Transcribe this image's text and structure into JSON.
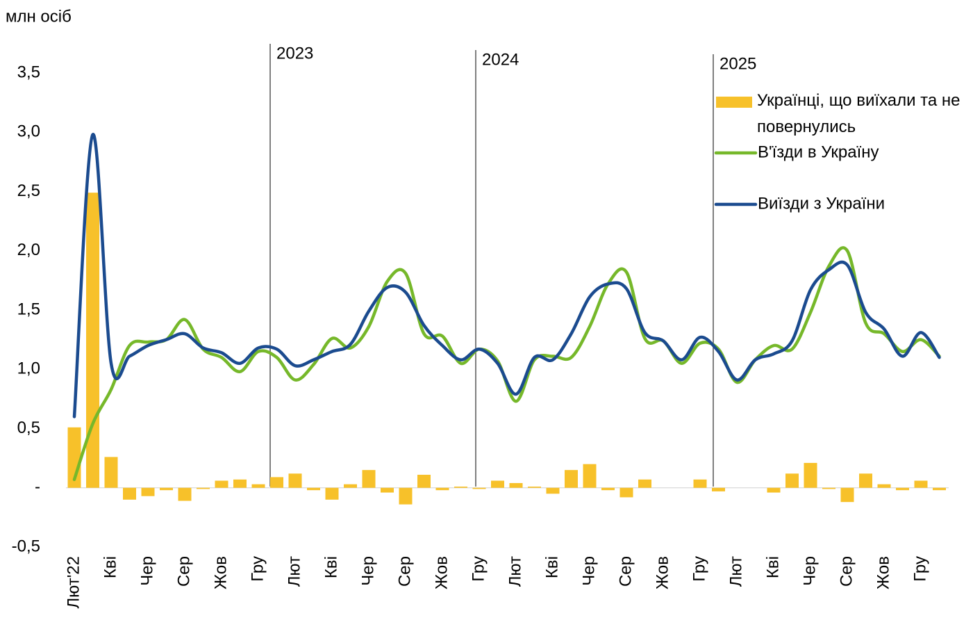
{
  "chart_data": {
    "type": "bar-line",
    "y_label": "млн осіб",
    "legend": "top-right",
    "categories": [
      "Лют'22",
      null,
      "Кві",
      null,
      "Чер",
      null,
      "Сер",
      null,
      "Жов",
      null,
      "Гру",
      null,
      "Лют",
      null,
      "Кві",
      null,
      "Чер",
      null,
      "Сер",
      null,
      "Жов",
      null,
      "Гру",
      null,
      "Лют",
      null,
      "Кві",
      null,
      "Чер",
      null,
      "Сер",
      null,
      "Жов",
      null,
      "Гру",
      null,
      "Лют",
      null,
      "Кві",
      null,
      "Чер",
      null,
      "Сер",
      null,
      "Жов",
      null,
      "Гру",
      null
    ],
    "series": [
      {
        "name": "Українці, що виїхали та не повернулись",
        "kind": "bar",
        "color": "#f7c12a",
        "values": [
          0.51,
          2.49,
          0.26,
          -0.1,
          -0.07,
          -0.02,
          -0.11,
          -0.01,
          0.06,
          0.07,
          0.03,
          0.09,
          0.12,
          -0.02,
          -0.1,
          0.03,
          0.15,
          -0.04,
          -0.14,
          0.11,
          -0.02,
          0.01,
          -0.01,
          0.06,
          0.04,
          0.01,
          -0.05,
          0.15,
          0.2,
          -0.02,
          -0.08,
          0.07,
          0,
          0,
          0.07,
          -0.03,
          0,
          0,
          -0.04,
          0.12,
          0.21,
          -0.01,
          -0.12,
          0.12,
          0.03,
          -0.02,
          0.06,
          -0.02
        ]
      },
      {
        "name": "В'їзди в Україну",
        "kind": "line",
        "color": "#76b82a",
        "values": [
          0.07,
          0.54,
          0.83,
          1.2,
          1.23,
          1.25,
          1.42,
          1.17,
          1.1,
          0.98,
          1.15,
          1.1,
          0.91,
          1.04,
          1.26,
          1.18,
          1.36,
          1.74,
          1.81,
          1.3,
          1.28,
          1.05,
          1.17,
          1.07,
          0.73,
          1.08,
          1.11,
          1.1,
          1.36,
          1.72,
          1.82,
          1.26,
          1.24,
          1.05,
          1.22,
          1.17,
          0.89,
          1.08,
          1.2,
          1.17,
          1.48,
          1.87,
          2.0,
          1.39,
          1.3,
          1.15,
          1.25,
          1.11
        ]
      },
      {
        "name": "Виїзди з України",
        "kind": "line",
        "color": "#1b4b8f",
        "values": [
          0.6,
          2.98,
          1.05,
          1.11,
          1.2,
          1.25,
          1.3,
          1.18,
          1.14,
          1.05,
          1.18,
          1.17,
          1.03,
          1.08,
          1.15,
          1.21,
          1.49,
          1.69,
          1.65,
          1.37,
          1.2,
          1.08,
          1.17,
          1.05,
          0.79,
          1.1,
          1.08,
          1.3,
          1.61,
          1.72,
          1.68,
          1.31,
          1.24,
          1.08,
          1.27,
          1.15,
          0.91,
          1.08,
          1.13,
          1.24,
          1.67,
          1.84,
          1.88,
          1.48,
          1.34,
          1.11,
          1.31,
          1.1
        ]
      }
    ],
    "ylim": [
      -0.5,
      3.5
    ],
    "yticks": [
      {
        "value": -0.5,
        "label": "-0,5"
      },
      {
        "value": 0,
        "label": "-"
      },
      {
        "value": 0.5,
        "label": "0,5"
      },
      {
        "value": 1,
        "label": "1,0"
      },
      {
        "value": 1.5,
        "label": "1,5"
      },
      {
        "value": 2,
        "label": "2,0"
      },
      {
        "value": 2.5,
        "label": "2,5"
      },
      {
        "value": 3,
        "label": "3,0"
      },
      {
        "value": 3.5,
        "label": "3,5"
      }
    ],
    "annotations": [
      {
        "text": "2023"
      },
      {
        "text": "2024"
      },
      {
        "text": "2025"
      }
    ]
  }
}
